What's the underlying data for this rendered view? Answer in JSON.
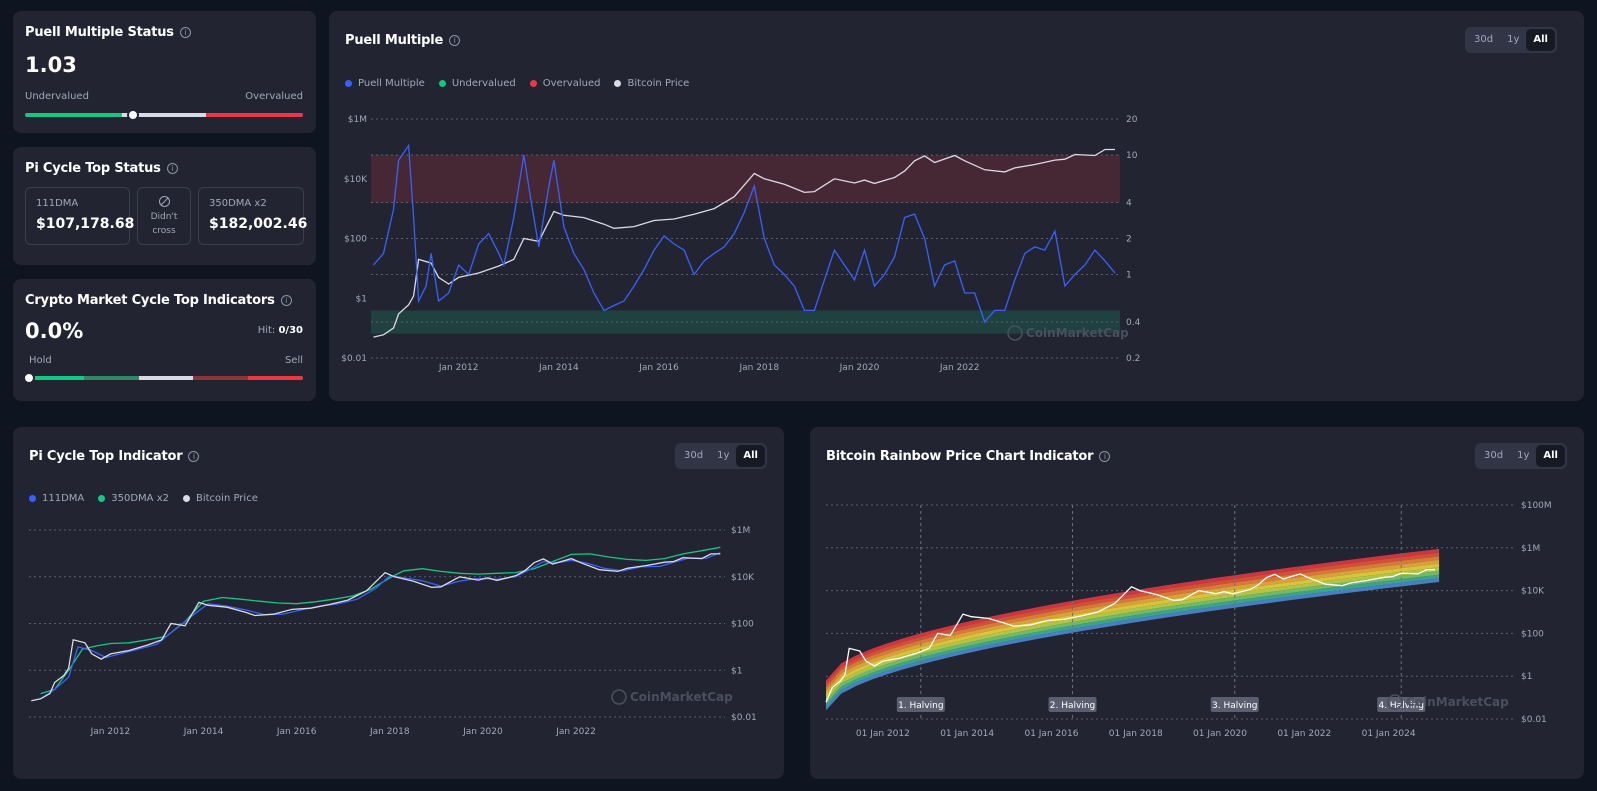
{
  "colors": {
    "background": "#0e1420",
    "card": "#222531",
    "blue": "#3861fb",
    "green": "#16c784",
    "red": "#ea3943",
    "gray_line": "#d8dbe3"
  },
  "puell_status": {
    "title": "Puell Multiple Status",
    "value": "1.03",
    "left_label": "Undervalued",
    "right_label": "Overvalued",
    "gauge_fraction": 0.39
  },
  "pi_status": {
    "title": "Pi Cycle Top Status",
    "dma111_label": "111DMA",
    "dma111_value": "$107,178.68",
    "cross_text_1": "Didn't",
    "cross_text_2": "cross",
    "dma350_label": "350DMA x2",
    "dma350_value": "$182,002.46"
  },
  "cycle_top": {
    "title": "Crypto Market Cycle Top Indicators",
    "value": "0.0%",
    "hit_label": "Hit:",
    "hit_value": "0/30",
    "left_label": "Hold",
    "right_label": "Sell",
    "gauge_fraction": 0.0
  },
  "puell_chart": {
    "title": "Puell Multiple",
    "toggle": [
      "30d",
      "1y",
      "All"
    ],
    "active_toggle": "All",
    "legend": [
      {
        "label": "Puell Multiple",
        "color": "#3861fb"
      },
      {
        "label": "Undervalued",
        "color": "#16c784"
      },
      {
        "label": "Overvalued",
        "color": "#ea3943"
      },
      {
        "label": "Bitcoin Price",
        "color": "#d8dbe3"
      }
    ],
    "watermark": "CoinMarketCap"
  },
  "pi_chart": {
    "title": "Pi Cycle Top Indicator",
    "toggle": [
      "30d",
      "1y",
      "All"
    ],
    "active_toggle": "All",
    "legend": [
      {
        "label": "111DMA",
        "color": "#3861fb"
      },
      {
        "label": "350DMA x2",
        "color": "#16c784"
      },
      {
        "label": "Bitcoin Price",
        "color": "#d8dbe3"
      }
    ],
    "watermark": "CoinMarketCap"
  },
  "rainbow_chart": {
    "title": "Bitcoin Rainbow Price Chart Indicator",
    "toggle": [
      "30d",
      "1y",
      "All"
    ],
    "active_toggle": "All",
    "watermark": "CoinMarketCap"
  },
  "chart_data": [
    {
      "type": "line",
      "title": "Puell Multiple",
      "x_tick_labels": [
        "Jan 2012",
        "Jan 2014",
        "Jan 2016",
        "Jan 2018",
        "Jan 2020",
        "Jan 2022"
      ],
      "x_ticks_year": [
        2012,
        2014,
        2016,
        2018,
        2020,
        2022
      ],
      "xlim": [
        2010.25,
        2025.2
      ],
      "y_left_ticks": [
        "$1M",
        "$10K",
        "$100",
        "$1",
        "$0.01"
      ],
      "y_left_log10": [
        6,
        4,
        2,
        0,
        -2
      ],
      "y_left_scale": "log",
      "y_right_ticks": [
        "20",
        "10",
        "4",
        "2",
        "1",
        "0.4",
        "0.2"
      ],
      "y_right_values": [
        20,
        10,
        4,
        2,
        1,
        0.4,
        0.2
      ],
      "y_right_scale": "log",
      "bands": [
        {
          "name": "Overvalued",
          "from": 4,
          "to": 10,
          "color": "#ea3943"
        },
        {
          "name": "Undervalued",
          "from": 0.32,
          "to": 0.5,
          "color": "#16c784"
        }
      ],
      "series": [
        {
          "name": "Puell Multiple",
          "axis": "right",
          "color": "#3861fb",
          "x": [
            2010.3,
            2010.5,
            2010.7,
            2010.8,
            2011.0,
            2011.1,
            2011.2,
            2011.35,
            2011.45,
            2011.6,
            2011.8,
            2012.0,
            2012.2,
            2012.4,
            2012.6,
            2012.8,
            2012.9,
            2013.1,
            2013.3,
            2013.45,
            2013.6,
            2013.8,
            2013.9,
            2014.1,
            2014.3,
            2014.5,
            2014.7,
            2014.9,
            2015.1,
            2015.3,
            2015.5,
            2015.7,
            2015.9,
            2016.1,
            2016.3,
            2016.5,
            2016.7,
            2016.9,
            2017.1,
            2017.3,
            2017.5,
            2017.7,
            2017.9,
            2018.1,
            2018.3,
            2018.5,
            2018.7,
            2018.9,
            2019.1,
            2019.3,
            2019.5,
            2019.7,
            2019.9,
            2020.1,
            2020.3,
            2020.5,
            2020.7,
            2020.9,
            2021.1,
            2021.3,
            2021.5,
            2021.7,
            2021.9,
            2022.1,
            2022.3,
            2022.5,
            2022.7,
            2022.9,
            2023.1,
            2023.3,
            2023.5,
            2023.7,
            2023.9,
            2024.1,
            2024.3,
            2024.5,
            2024.7,
            2024.9,
            2025.1
          ],
          "y": [
            1.2,
            1.5,
            3.5,
            9.0,
            12.0,
            3.0,
            0.6,
            0.8,
            1.5,
            0.6,
            0.7,
            1.2,
            1.0,
            1.8,
            2.2,
            1.5,
            1.2,
            3.0,
            10.0,
            4.0,
            1.7,
            5.5,
            9.0,
            2.5,
            1.5,
            1.1,
            0.7,
            0.5,
            0.55,
            0.6,
            0.8,
            1.1,
            1.6,
            2.1,
            1.8,
            1.6,
            1.0,
            1.3,
            1.5,
            1.7,
            2.2,
            3.3,
            5.5,
            2.0,
            1.2,
            1.0,
            0.8,
            0.5,
            0.5,
            0.9,
            1.6,
            1.2,
            0.9,
            1.6,
            0.8,
            1.0,
            1.4,
            3.0,
            3.2,
            2.0,
            0.8,
            1.2,
            1.3,
            0.7,
            0.7,
            0.4,
            0.5,
            0.5,
            0.9,
            1.5,
            1.7,
            1.6,
            2.3,
            0.8,
            1.0,
            1.2,
            1.6,
            1.3,
            1.03
          ]
        },
        {
          "name": "Bitcoin Price",
          "axis": "left",
          "color": "#d8dbe3",
          "x": [
            2010.3,
            2010.5,
            2010.7,
            2010.8,
            2011.0,
            2011.1,
            2011.2,
            2011.45,
            2011.6,
            2011.8,
            2012.0,
            2012.4,
            2012.8,
            2013.1,
            2013.3,
            2013.6,
            2013.9,
            2014.1,
            2014.5,
            2014.9,
            2015.1,
            2015.5,
            2015.9,
            2016.3,
            2016.7,
            2017.1,
            2017.5,
            2017.9,
            2018.1,
            2018.5,
            2018.9,
            2019.1,
            2019.5,
            2019.9,
            2020.1,
            2020.3,
            2020.7,
            2020.9,
            2021.1,
            2021.3,
            2021.5,
            2021.9,
            2022.1,
            2022.5,
            2022.9,
            2023.1,
            2023.5,
            2023.9,
            2024.1,
            2024.3,
            2024.7,
            2024.9,
            2025.1
          ],
          "y": [
            0.05,
            0.06,
            0.1,
            0.3,
            0.6,
            1.2,
            20,
            15,
            5,
            3,
            5,
            7,
            12,
            20,
            100,
            80,
            800,
            600,
            500,
            300,
            220,
            250,
            400,
            450,
            650,
            1000,
            2500,
            15000,
            10000,
            6500,
            3500,
            3700,
            10000,
            7200,
            9000,
            7000,
            11000,
            18000,
            40000,
            58000,
            35000,
            60000,
            40000,
            20000,
            17000,
            23000,
            30000,
            42000,
            45000,
            65000,
            60000,
            95000,
            95000
          ]
        }
      ]
    },
    {
      "type": "line",
      "title": "Pi Cycle Top Indicator",
      "x_tick_labels": [
        "Jan 2012",
        "Jan 2014",
        "Jan 2016",
        "Jan 2018",
        "Jan 2020",
        "Jan 2022"
      ],
      "x_ticks_year": [
        2012,
        2014,
        2016,
        2018,
        2020,
        2022
      ],
      "xlim": [
        2010.25,
        2025.2
      ],
      "y_tick_labels": [
        "$1M",
        "$10K",
        "$100",
        "$1",
        "$0.01"
      ],
      "y_ticks_log10": [
        6,
        4,
        2,
        0,
        -2
      ],
      "y_scale": "log",
      "series": [
        {
          "name": "Bitcoin Price",
          "color": "#d8dbe3",
          "x": [
            2010.3,
            2010.5,
            2010.7,
            2010.8,
            2011.0,
            2011.1,
            2011.2,
            2011.45,
            2011.6,
            2011.8,
            2012.0,
            2012.4,
            2012.8,
            2013.1,
            2013.3,
            2013.6,
            2013.9,
            2014.1,
            2014.5,
            2014.9,
            2015.1,
            2015.5,
            2015.9,
            2016.3,
            2016.7,
            2017.1,
            2017.5,
            2017.9,
            2018.1,
            2018.5,
            2018.9,
            2019.1,
            2019.5,
            2019.9,
            2020.1,
            2020.3,
            2020.7,
            2020.9,
            2021.1,
            2021.3,
            2021.5,
            2021.9,
            2022.1,
            2022.5,
            2022.9,
            2023.1,
            2023.5,
            2023.9,
            2024.1,
            2024.3,
            2024.7,
            2024.9,
            2025.1
          ],
          "y": [
            0.05,
            0.06,
            0.1,
            0.3,
            0.6,
            1.2,
            20,
            15,
            5,
            3,
            5,
            7,
            12,
            20,
            100,
            80,
            800,
            600,
            500,
            300,
            220,
            250,
            400,
            450,
            650,
            1000,
            2500,
            15000,
            10000,
            6500,
            3500,
            3700,
            10000,
            7200,
            9000,
            7000,
            11000,
            18000,
            40000,
            58000,
            35000,
            60000,
            40000,
            20000,
            17000,
            23000,
            30000,
            42000,
            45000,
            65000,
            60000,
            95000,
            95000
          ]
        },
        {
          "name": "111DMA",
          "color": "#3861fb",
          "x": [
            2010.5,
            2010.8,
            2011.1,
            2011.3,
            2011.6,
            2011.9,
            2012.2,
            2012.6,
            2013.0,
            2013.4,
            2013.8,
            2014.1,
            2014.5,
            2014.9,
            2015.3,
            2015.7,
            2016.1,
            2016.5,
            2016.9,
            2017.3,
            2017.7,
            2018.0,
            2018.3,
            2018.7,
            2019.1,
            2019.5,
            2019.9,
            2020.3,
            2020.7,
            2021.0,
            2021.3,
            2021.6,
            2021.9,
            2022.2,
            2022.6,
            2023.0,
            2023.4,
            2023.8,
            2024.1,
            2024.4,
            2024.8,
            2025.1
          ],
          "y": [
            0.06,
            0.15,
            0.5,
            10,
            7,
            3.5,
            5,
            8,
            13,
            60,
            250,
            700,
            550,
            380,
            240,
            250,
            380,
            550,
            700,
            1100,
            3200,
            11000,
            9000,
            6800,
            4000,
            6500,
            8500,
            7800,
            10000,
            20000,
            45000,
            40000,
            50000,
            40000,
            23000,
            18000,
            27000,
            28000,
            42000,
            62000,
            62000,
            107178
          ]
        },
        {
          "name": "350DMA x2",
          "color": "#16c784",
          "x": [
            2010.5,
            2010.8,
            2011.1,
            2011.4,
            2011.7,
            2012.0,
            2012.4,
            2012.8,
            2013.2,
            2013.6,
            2014.0,
            2014.4,
            2014.8,
            2015.2,
            2015.6,
            2016.0,
            2016.4,
            2016.8,
            2017.2,
            2017.6,
            2018.0,
            2018.3,
            2018.7,
            2019.1,
            2019.5,
            2019.9,
            2020.3,
            2020.7,
            2021.1,
            2021.5,
            2021.9,
            2022.3,
            2022.7,
            2023.1,
            2023.5,
            2023.9,
            2024.3,
            2024.7,
            2025.1
          ],
          "y": [
            0.1,
            0.15,
            1.0,
            8,
            11,
            14,
            15,
            20,
            28,
            120,
            900,
            1300,
            1100,
            900,
            750,
            700,
            850,
            1100,
            1500,
            3000,
            9000,
            18000,
            22000,
            17000,
            14000,
            13000,
            14000,
            15000,
            22000,
            45000,
            90000,
            95000,
            70000,
            55000,
            50000,
            60000,
            95000,
            130000,
            182002
          ]
        }
      ]
    },
    {
      "type": "area",
      "title": "Bitcoin Rainbow Price Chart Indicator",
      "x_tick_labels": [
        "01 Jan 2012",
        "01 Jan 2014",
        "01 Jan 2016",
        "01 Jan 2018",
        "01 Jan 2020",
        "01 Jan 2022",
        "01 Jan 2024"
      ],
      "x_ticks_year": [
        2012,
        2014,
        2016,
        2018,
        2020,
        2022,
        2024
      ],
      "xlim": [
        2010.65,
        2027.0
      ],
      "y_tick_labels": [
        "$100M",
        "$1M",
        "$10K",
        "$100",
        "$1",
        "$0.01"
      ],
      "y_ticks_log10": [
        8,
        6,
        4,
        2,
        0,
        -2
      ],
      "y_scale": "log",
      "halvings": [
        {
          "label": "1. Halving",
          "year": 2012.9
        },
        {
          "label": "2. Halving",
          "year": 2016.5
        },
        {
          "label": "3. Halving",
          "year": 2020.35
        },
        {
          "label": "4. Halving",
          "year": 2024.3
        }
      ],
      "bands": [
        "#ea3943",
        "#f1583a",
        "#f68a3b",
        "#f9b73b",
        "#f9e03b",
        "#c9e04b",
        "#7fd36c",
        "#41b8a0",
        "#4f8fd8"
      ],
      "series": [
        {
          "name": "Bitcoin Price",
          "color": "#ffffff",
          "x": [
            2010.65,
            2010.8,
            2011.0,
            2011.1,
            2011.2,
            2011.45,
            2011.6,
            2011.8,
            2012.0,
            2012.4,
            2012.8,
            2013.1,
            2013.3,
            2013.6,
            2013.9,
            2014.1,
            2014.5,
            2014.9,
            2015.1,
            2015.5,
            2015.9,
            2016.3,
            2016.7,
            2017.1,
            2017.5,
            2017.9,
            2018.1,
            2018.5,
            2018.9,
            2019.1,
            2019.5,
            2019.9,
            2020.1,
            2020.3,
            2020.7,
            2020.9,
            2021.1,
            2021.3,
            2021.5,
            2021.9,
            2022.1,
            2022.5,
            2022.9,
            2023.1,
            2023.5,
            2023.9,
            2024.1,
            2024.3,
            2024.7,
            2024.9,
            2025.1
          ],
          "y": [
            0.06,
            0.3,
            0.6,
            1.2,
            20,
            15,
            5,
            3,
            5,
            7,
            12,
            20,
            100,
            80,
            800,
            600,
            500,
            300,
            220,
            250,
            400,
            450,
            650,
            1000,
            2500,
            15000,
            10000,
            6500,
            3500,
            3700,
            10000,
            7200,
            9000,
            7000,
            11000,
            18000,
            40000,
            58000,
            35000,
            60000,
            40000,
            20000,
            17000,
            23000,
            30000,
            42000,
            45000,
            65000,
            60000,
            95000,
            95000
          ]
        }
      ]
    }
  ]
}
